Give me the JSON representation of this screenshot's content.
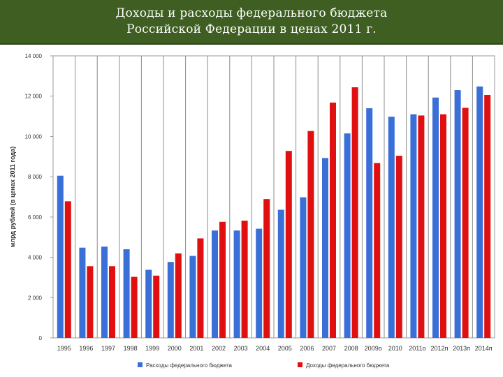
{
  "header": {
    "title_line1": "Доходы и расходы федерального бюджета",
    "title_line2": "Российской Федерации в ценах 2011 г."
  },
  "chart_data": {
    "type": "bar",
    "title": "Доходы и расходы федерального бюджета Российской Федерации в ценах 2011 г.",
    "ylabel": "млрд рублей (в ценах 2011 года)",
    "xlabel": "",
    "ylim": [
      0,
      14000
    ],
    "yticks": [
      0,
      2000,
      4000,
      6000,
      8000,
      10000,
      12000,
      14000
    ],
    "ytick_labels": [
      "0",
      "2 000",
      "4 000",
      "6 000",
      "8 000",
      "10 000",
      "12 000",
      "14 000"
    ],
    "grid": "vertical",
    "legend_position": "bottom",
    "categories": [
      "1995",
      "1996",
      "1997",
      "1998",
      "1999",
      "2000",
      "2001",
      "2002",
      "2003",
      "2004",
      "2005",
      "2006",
      "2007",
      "2008",
      "2009о",
      "2010",
      "2011о",
      "2012п",
      "2013п",
      "2014п"
    ],
    "series": [
      {
        "name": "Расходы федерального бюджета",
        "color": "#3b6fd8",
        "values": [
          8050,
          4480,
          4530,
          4400,
          3380,
          3770,
          4070,
          5330,
          5330,
          5420,
          6360,
          6980,
          8930,
          10150,
          11400,
          10980,
          11100,
          11930,
          12300,
          12480
        ]
      },
      {
        "name": "Доходы федерального бюджета",
        "color": "#e01010",
        "values": [
          6780,
          3560,
          3560,
          3030,
          3090,
          4190,
          4940,
          5760,
          5820,
          6890,
          9280,
          10270,
          11680,
          12440,
          8680,
          9040,
          11040,
          11100,
          11420,
          12060
        ]
      }
    ]
  }
}
